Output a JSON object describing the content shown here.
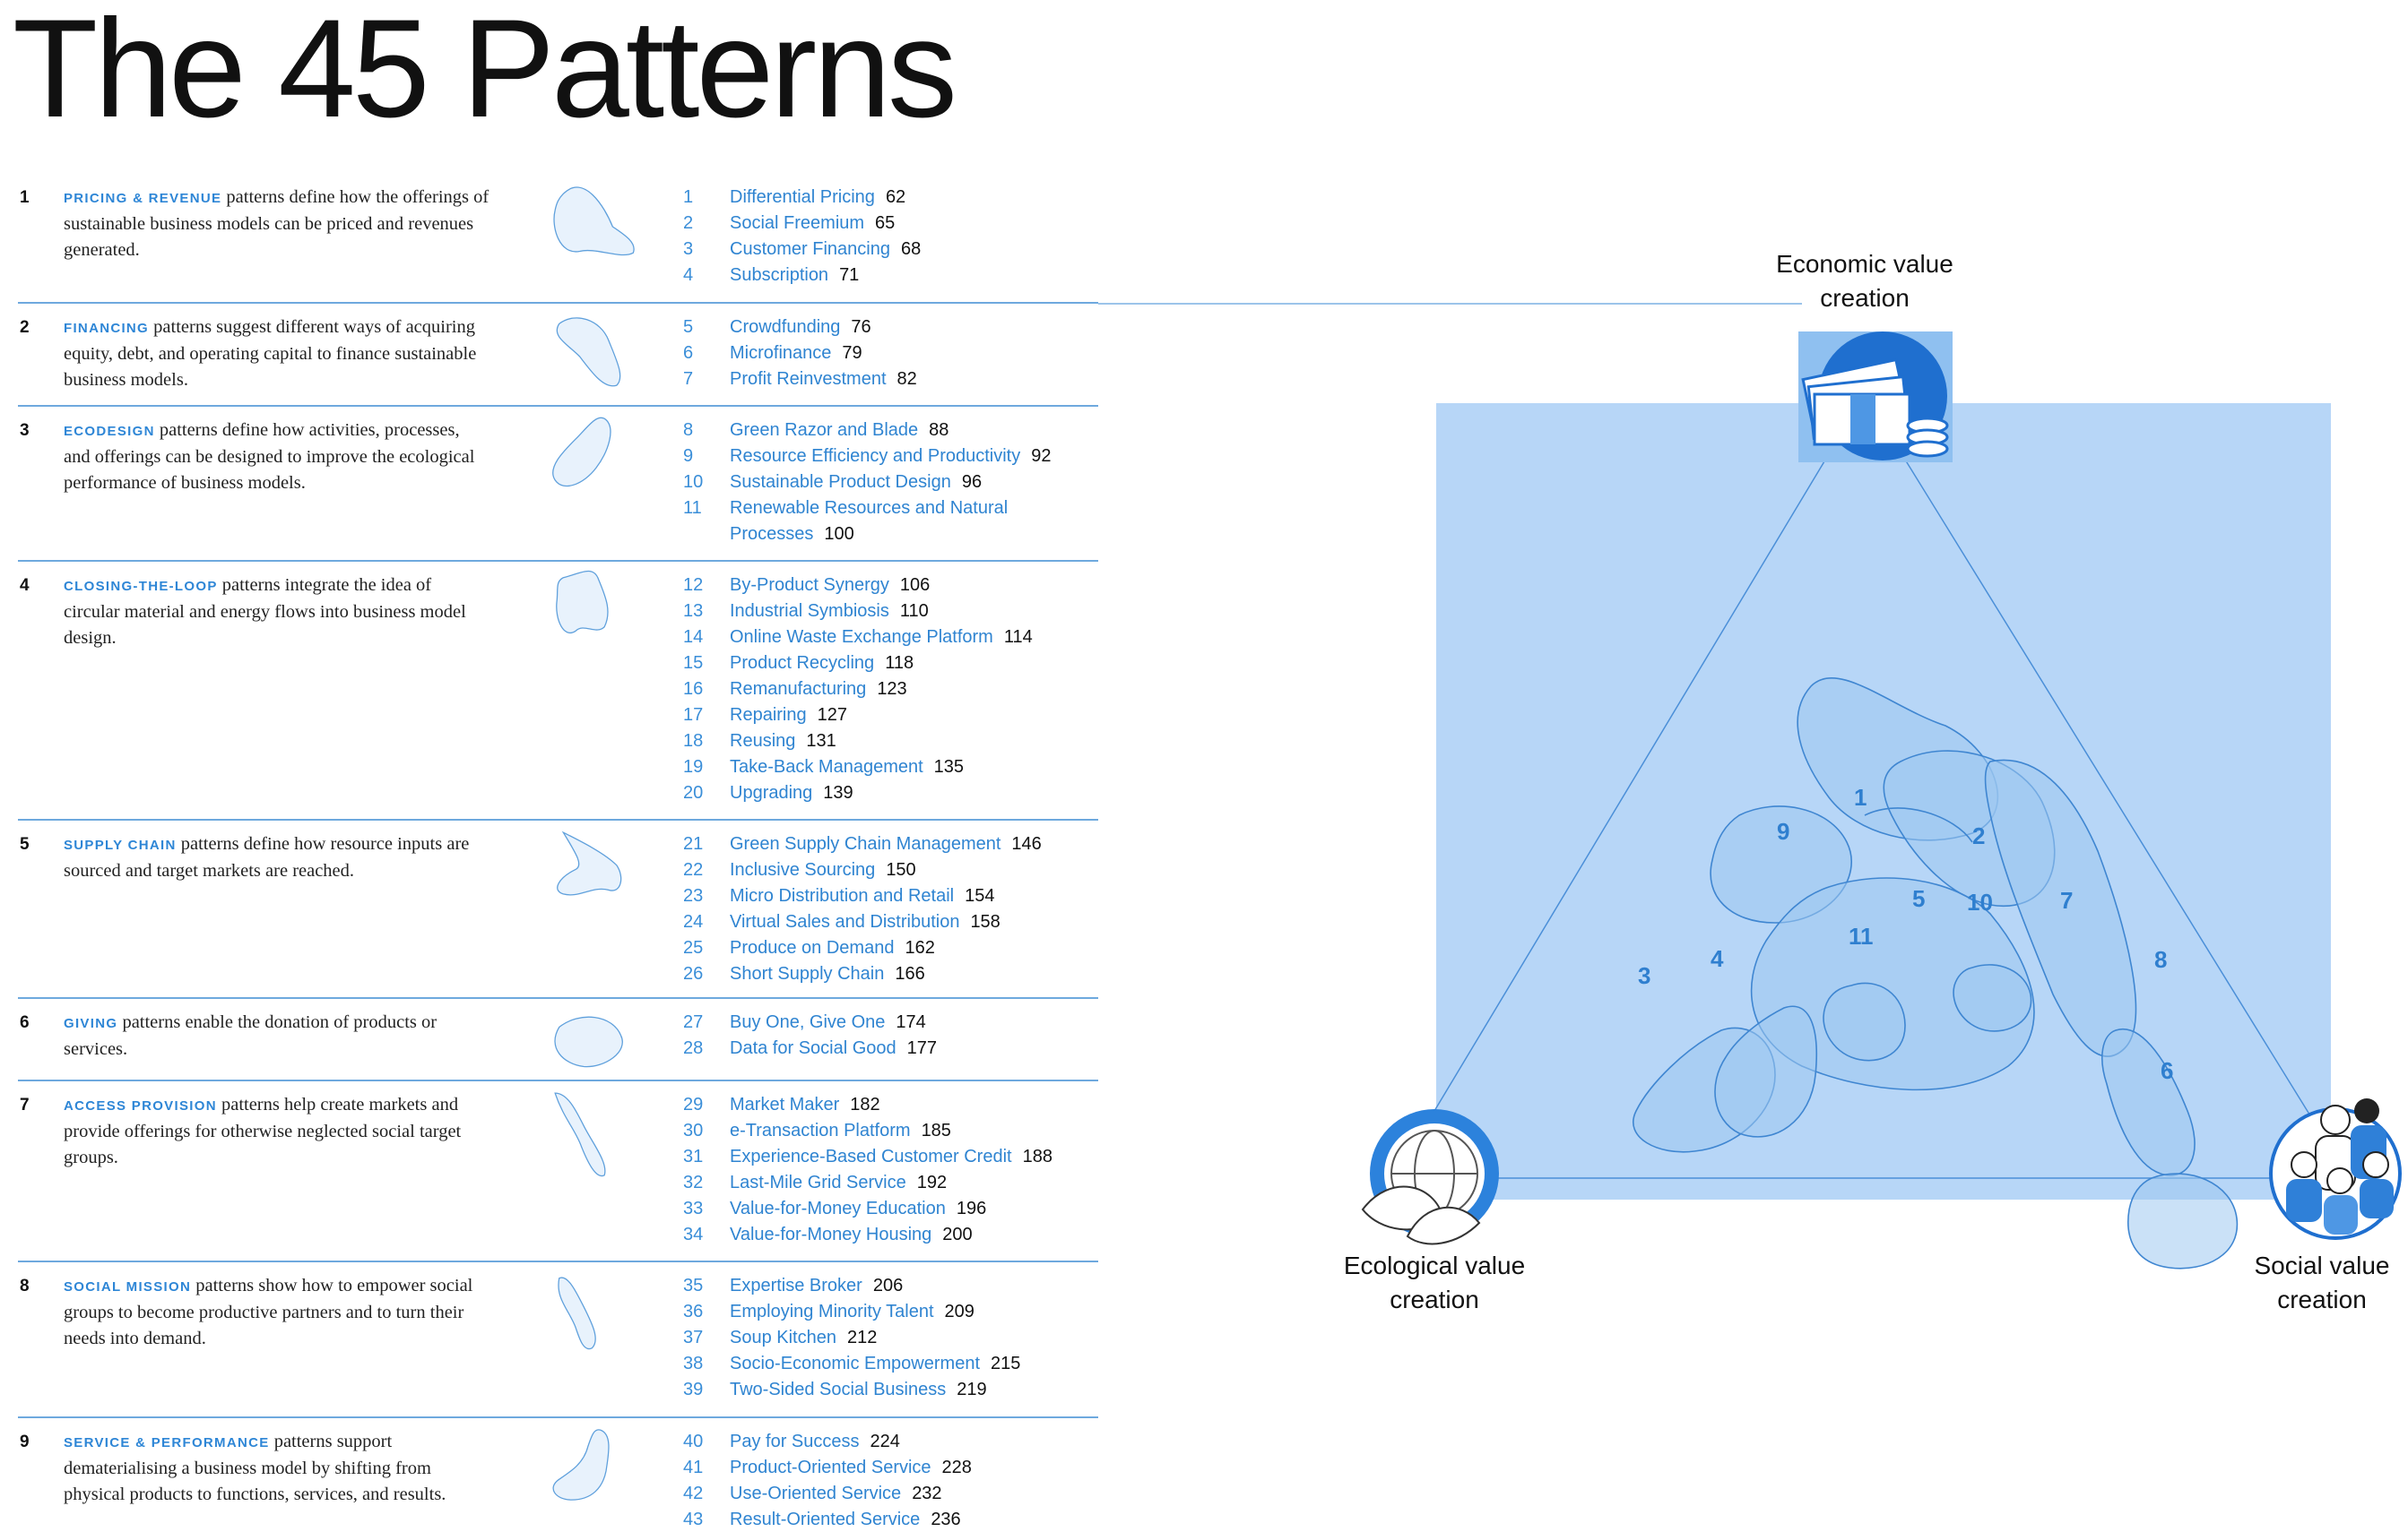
{
  "title": "The 45 Patterns",
  "accent_color": "#2e86d6",
  "sections": [
    {
      "num": "1",
      "name": "Pricing & Revenue",
      "text": " patterns define how the offerings of sustainable business models can be priced and revenues generated.",
      "patterns": [
        {
          "num": "1",
          "name": "Differential Pricing",
          "page": "62"
        },
        {
          "num": "2",
          "name": "Social Freemium",
          "page": "65"
        },
        {
          "num": "3",
          "name": "Customer Financing",
          "page": "68"
        },
        {
          "num": "4",
          "name": "Subscription",
          "page": "71"
        }
      ]
    },
    {
      "num": "2",
      "name": "Financing",
      "text": " patterns suggest different ways of acquiring equity, debt, and operating capital to finance sustainable business models.",
      "patterns": [
        {
          "num": "5",
          "name": "Crowdfunding",
          "page": "76"
        },
        {
          "num": "6",
          "name": "Microfinance",
          "page": "79"
        },
        {
          "num": "7",
          "name": "Profit Reinvestment",
          "page": "82"
        }
      ]
    },
    {
      "num": "3",
      "name": "Ecodesign",
      "text": " patterns define how activities, processes, and offerings can be designed to improve the ecological performance of business models.",
      "patterns": [
        {
          "num": "8",
          "name": "Green Razor and Blade",
          "page": "88"
        },
        {
          "num": "9",
          "name": "Resource Efficiency and Productivity",
          "page": "92"
        },
        {
          "num": "10",
          "name": "Sustainable Product Design",
          "page": "96"
        },
        {
          "num": "11",
          "name": "Renewable Resources and Natural",
          "name2": "Processes",
          "page": "100"
        }
      ]
    },
    {
      "num": "4",
      "name": "Closing-the-Loop",
      "text": " patterns integrate the idea of circular material and energy flows into business model design.",
      "patterns": [
        {
          "num": "12",
          "name": "By-Product Synergy",
          "page": "106"
        },
        {
          "num": "13",
          "name": "Industrial Symbiosis",
          "page": "110"
        },
        {
          "num": "14",
          "name": "Online Waste Exchange Platform",
          "page": "114"
        },
        {
          "num": "15",
          "name": "Product Recycling",
          "page": "118"
        },
        {
          "num": "16",
          "name": "Remanufacturing",
          "page": "123"
        },
        {
          "num": "17",
          "name": "Repairing",
          "page": "127"
        },
        {
          "num": "18",
          "name": "Reusing",
          "page": "131"
        },
        {
          "num": "19",
          "name": "Take-Back Management",
          "page": "135"
        },
        {
          "num": "20",
          "name": "Upgrading",
          "page": "139"
        }
      ]
    },
    {
      "num": "5",
      "name": "Supply Chain",
      "text": " patterns define how resource inputs are sourced and target markets are reached.",
      "patterns": [
        {
          "num": "21",
          "name": "Green Supply Chain Management",
          "page": "146"
        },
        {
          "num": "22",
          "name": "Inclusive Sourcing",
          "page": "150"
        },
        {
          "num": "23",
          "name": "Micro Distribution and Retail",
          "page": "154"
        },
        {
          "num": "24",
          "name": "Virtual Sales and Distribution",
          "page": "158"
        },
        {
          "num": "25",
          "name": "Produce on Demand",
          "page": "162"
        },
        {
          "num": "26",
          "name": "Short Supply Chain",
          "page": "166"
        }
      ]
    },
    {
      "num": "6",
      "name": "Giving",
      "text": " patterns enable the donation of products or services.",
      "patterns": [
        {
          "num": "27",
          "name": "Buy One, Give One",
          "page": "174"
        },
        {
          "num": "28",
          "name": "Data for Social Good",
          "page": "177"
        }
      ]
    },
    {
      "num": "7",
      "name": "Access Provision",
      "text": " patterns help create markets and provide offerings for otherwise neglected social target groups.",
      "patterns": [
        {
          "num": "29",
          "name": "Market Maker",
          "page": "182"
        },
        {
          "num": "30",
          "name": "e-Transaction Platform",
          "page": "185"
        },
        {
          "num": "31",
          "name": "Experience-Based Customer Credit",
          "page": "188"
        },
        {
          "num": "32",
          "name": "Last-Mile Grid Service",
          "page": "192"
        },
        {
          "num": "33",
          "name": "Value-for-Money Education",
          "page": "196"
        },
        {
          "num": "34",
          "name": "Value-for-Money Housing",
          "page": "200"
        }
      ]
    },
    {
      "num": "8",
      "name": "Social Mission",
      "text": " patterns show how to empower social groups to become productive partners and to turn their needs into demand.",
      "patterns": [
        {
          "num": "35",
          "name": "Expertise Broker",
          "page": "206"
        },
        {
          "num": "36",
          "name": "Employing Minority Talent",
          "page": "209"
        },
        {
          "num": "37",
          "name": "Soup Kitchen",
          "page": "212"
        },
        {
          "num": "38",
          "name": "Socio-Economic Empowerment",
          "page": "215"
        },
        {
          "num": "39",
          "name": "Two-Sided Social Business",
          "page": "219"
        }
      ]
    },
    {
      "num": "9",
      "name": "Service & Performance",
      "text": " patterns support dematerialising a business model by shifting from physical products to functions, services, and results.",
      "patterns": [
        {
          "num": "40",
          "name": "Pay for Success",
          "page": "224"
        },
        {
          "num": "41",
          "name": "Product-Oriented Service",
          "page": "228"
        },
        {
          "num": "42",
          "name": "Use-Oriented Service",
          "page": "232"
        },
        {
          "num": "43",
          "name": "Result-Oriented Service",
          "page": "236"
        }
      ]
    }
  ],
  "diagram": {
    "labels": {
      "economic": [
        "Economic value",
        "creation"
      ],
      "ecological": [
        "Ecological value",
        "creation"
      ],
      "social": [
        "Social value",
        "creation"
      ]
    },
    "region_numbers": [
      "1",
      "2",
      "3",
      "4",
      "5",
      "6",
      "7",
      "8",
      "9",
      "10",
      "11"
    ],
    "icons": [
      "money-icon",
      "globe-leaf-icon",
      "people-icon"
    ]
  }
}
